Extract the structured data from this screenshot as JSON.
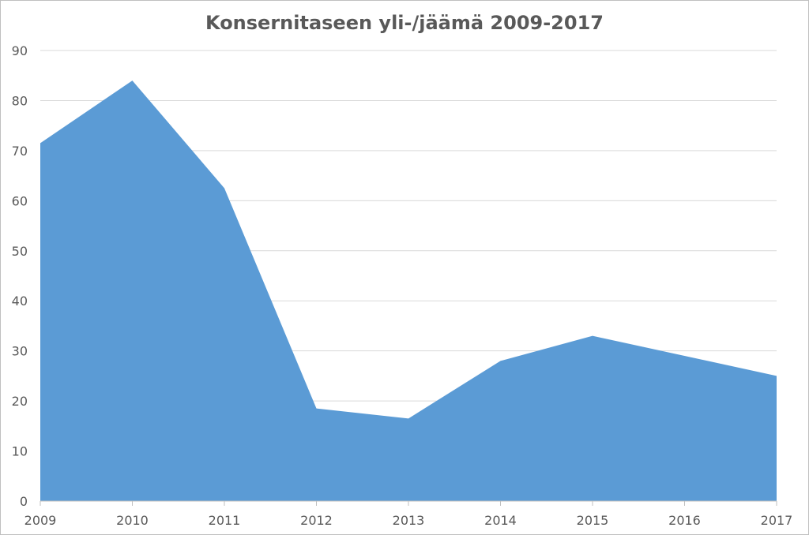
{
  "chart_data": {
    "type": "area",
    "title": "Konsernitaseen yli-/jäämä 2009-2017",
    "xlabel": "",
    "ylabel": "",
    "categories": [
      "2009",
      "2010",
      "2011",
      "2012",
      "2013",
      "2014",
      "2015",
      "2016",
      "2017"
    ],
    "series": [
      {
        "values": [
          71.5,
          84,
          62.5,
          18.5,
          16.5,
          28,
          33,
          29,
          25
        ]
      }
    ],
    "ylim": [
      0,
      90
    ],
    "yticks": [
      0,
      10,
      20,
      30,
      40,
      50,
      60,
      70,
      80,
      90
    ],
    "grid": "horizontal",
    "legend": "none",
    "colors": {
      "area": "#5b9bd5",
      "grid": "#d9d9d9",
      "axis": "#bfbfbf",
      "text": "#595959"
    }
  }
}
